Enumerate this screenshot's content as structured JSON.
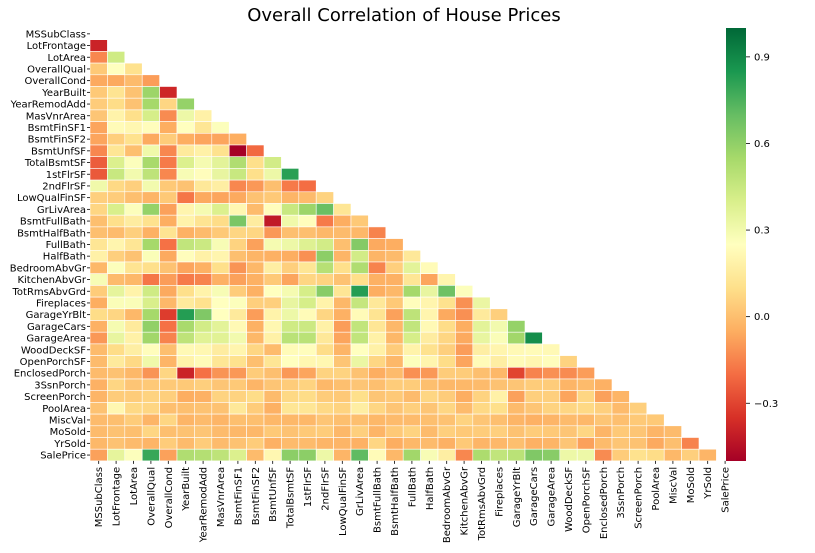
{
  "chart_data": {
    "type": "heatmap",
    "title": "Overall Correlation of House Prices",
    "layout": "lower-triangle",
    "grid": false,
    "colormap": "RdYlGn",
    "colorbar": {
      "position": "right",
      "vmin": -0.5,
      "vmax": 1.0,
      "ticks": [
        0.9,
        0.6,
        0.3,
        0.0,
        -0.3
      ],
      "tick_labels": [
        "0.9",
        "0.6",
        "0.3",
        "0.0",
        "−0.3"
      ]
    },
    "variables": [
      "MSSubClass",
      "LotFrontage",
      "LotArea",
      "OverallQual",
      "OverallCond",
      "YearBuilt",
      "YearRemodAdd",
      "MasVnrArea",
      "BsmtFinSF1",
      "BsmtFinSF2",
      "BsmtUnfSF",
      "TotalBsmtSF",
      "1stFlrSF",
      "2ndFlrSF",
      "LowQualFinSF",
      "GrLivArea",
      "BsmtFullBath",
      "BsmtHalfBath",
      "FullBath",
      "HalfBath",
      "BedroomAbvGr",
      "KitchenAbvGr",
      "TotRmsAbvGrd",
      "Fireplaces",
      "GarageYrBlt",
      "GarageCars",
      "GarageArea",
      "WoodDeckSF",
      "OpenPorchSF",
      "EnclosedPorch",
      "3SsnPorch",
      "ScreenPorch",
      "PoolArea",
      "MiscVal",
      "MoSold",
      "YrSold",
      "SalePrice"
    ],
    "matrix": [
      [],
      [
        -0.39
      ],
      [
        -0.14,
        0.43
      ],
      [
        0.03,
        0.25,
        0.11
      ],
      [
        -0.06,
        -0.06,
        -0.01,
        -0.09
      ],
      [
        0.03,
        0.12,
        0.01,
        0.57,
        -0.38
      ],
      [
        0.04,
        0.09,
        0.01,
        0.55,
        0.07,
        0.59
      ],
      [
        0.02,
        0.19,
        0.1,
        0.41,
        -0.13,
        0.32,
        0.18
      ],
      [
        -0.07,
        0.23,
        0.21,
        0.24,
        -0.05,
        0.25,
        0.13,
        0.26
      ],
      [
        -0.07,
        0.05,
        0.11,
        -0.06,
        0.04,
        -0.05,
        -0.07,
        -0.07,
        -0.05
      ],
      [
        -0.14,
        0.13,
        -0.0,
        0.31,
        -0.14,
        0.15,
        0.18,
        0.11,
        -0.5,
        -0.21
      ],
      [
        -0.24,
        0.39,
        0.26,
        0.54,
        -0.17,
        0.39,
        0.29,
        0.36,
        0.52,
        0.1,
        0.42
      ],
      [
        -0.25,
        0.45,
        0.3,
        0.48,
        -0.14,
        0.28,
        0.24,
        0.34,
        0.45,
        0.1,
        0.32,
        0.82
      ],
      [
        0.31,
        0.08,
        0.05,
        0.3,
        0.03,
        0.01,
        0.14,
        0.17,
        -0.14,
        -0.1,
        0.0,
        -0.17,
        -0.2
      ],
      [
        0.05,
        0.04,
        0.0,
        -0.03,
        0.03,
        -0.18,
        -0.06,
        -0.07,
        -0.06,
        0.01,
        0.03,
        -0.03,
        -0.01,
        0.06
      ],
      [
        0.07,
        0.4,
        0.26,
        0.59,
        -0.08,
        0.2,
        0.29,
        0.39,
        0.21,
        -0.01,
        0.24,
        0.45,
        0.57,
        0.69,
        0.13
      ],
      [
        0.0,
        0.1,
        0.16,
        0.11,
        -0.05,
        0.19,
        0.12,
        0.09,
        0.65,
        0.16,
        -0.42,
        0.31,
        0.24,
        -0.17,
        -0.05,
        0.03
      ],
      [
        -0.0,
        -0.01,
        0.05,
        -0.04,
        0.12,
        -0.04,
        -0.01,
        0.03,
        0.07,
        0.07,
        -0.1,
        0.0,
        0.0,
        -0.02,
        -0.01,
        -0.02,
        -0.15
      ],
      [
        0.13,
        0.2,
        0.13,
        0.55,
        -0.19,
        0.47,
        0.44,
        0.28,
        0.06,
        -0.08,
        0.29,
        0.32,
        0.38,
        0.42,
        0.0,
        0.63,
        -0.06,
        -0.05
      ],
      [
        0.18,
        0.05,
        0.01,
        0.27,
        -0.06,
        0.24,
        0.18,
        0.2,
        0.0,
        -0.03,
        -0.04,
        -0.05,
        -0.12,
        0.61,
        -0.03,
        0.42,
        -0.03,
        -0.01,
        0.14
      ],
      [
        -0.02,
        0.26,
        0.12,
        0.1,
        0.01,
        -0.07,
        -0.04,
        0.1,
        -0.11,
        -0.02,
        0.17,
        0.05,
        0.13,
        0.5,
        0.1,
        0.52,
        -0.15,
        0.05,
        0.36,
        0.23
      ],
      [
        0.28,
        -0.01,
        -0.02,
        -0.18,
        -0.09,
        -0.17,
        -0.15,
        -0.04,
        -0.08,
        -0.04,
        0.03,
        -0.07,
        0.07,
        0.06,
        0.01,
        0.1,
        -0.04,
        -0.04,
        0.13,
        -0.07,
        0.2
      ],
      [
        0.04,
        0.35,
        0.19,
        0.43,
        -0.06,
        0.1,
        0.19,
        0.28,
        0.04,
        -0.04,
        0.25,
        0.29,
        0.41,
        0.62,
        0.13,
        0.83,
        -0.05,
        -0.02,
        0.55,
        0.34,
        0.68,
        0.26
      ],
      [
        -0.05,
        0.27,
        0.27,
        0.4,
        -0.02,
        0.15,
        0.11,
        0.25,
        0.26,
        0.05,
        0.05,
        0.34,
        0.41,
        0.19,
        -0.02,
        0.46,
        0.14,
        0.03,
        0.24,
        0.2,
        0.11,
        -0.12,
        0.33
      ],
      [
        0.09,
        0.07,
        -0.02,
        0.55,
        -0.32,
        0.83,
        0.64,
        0.25,
        0.15,
        -0.09,
        0.19,
        0.32,
        0.23,
        0.07,
        -0.04,
        0.23,
        0.12,
        -0.08,
        0.48,
        0.2,
        -0.06,
        -0.12,
        0.15,
        0.05
      ],
      [
        -0.04,
        0.29,
        0.15,
        0.6,
        -0.19,
        0.54,
        0.42,
        0.36,
        0.22,
        -0.04,
        0.21,
        0.43,
        0.44,
        0.18,
        -0.09,
        0.47,
        0.13,
        -0.02,
        0.47,
        0.22,
        0.09,
        -0.05,
        0.36,
        0.3,
        0.59
      ],
      [
        -0.1,
        0.34,
        0.18,
        0.56,
        -0.15,
        0.48,
        0.37,
        0.37,
        0.3,
        -0.02,
        0.18,
        0.49,
        0.49,
        0.14,
        -0.07,
        0.47,
        0.18,
        -0.02,
        0.41,
        0.16,
        0.07,
        -0.06,
        0.34,
        0.27,
        0.56,
        0.88
      ],
      [
        -0.01,
        0.09,
        0.17,
        0.24,
        -0.0,
        0.22,
        0.21,
        0.16,
        0.2,
        0.07,
        -0.01,
        0.23,
        0.24,
        0.09,
        -0.03,
        0.25,
        0.18,
        0.04,
        0.19,
        0.11,
        0.05,
        -0.09,
        0.17,
        0.2,
        0.22,
        0.23,
        0.22
      ],
      [
        -0.01,
        0.15,
        0.08,
        0.31,
        -0.03,
        0.19,
        0.23,
        0.13,
        0.11,
        0.0,
        0.13,
        0.25,
        0.21,
        0.21,
        0.02,
        0.33,
        0.07,
        -0.02,
        0.26,
        0.2,
        0.09,
        -0.07,
        0.23,
        0.17,
        0.23,
        0.21,
        0.24,
        0.06
      ],
      [
        -0.01,
        0.01,
        -0.02,
        -0.11,
        0.07,
        -0.39,
        -0.19,
        -0.11,
        -0.1,
        0.04,
        -0.0,
        -0.1,
        -0.07,
        0.06,
        0.06,
        0.01,
        -0.05,
        -0.01,
        -0.12,
        -0.1,
        0.04,
        0.04,
        0.0,
        -0.02,
        -0.3,
        -0.15,
        -0.12,
        -0.13,
        -0.09
      ],
      [
        -0.04,
        0.07,
        0.02,
        0.03,
        0.03,
        0.03,
        0.05,
        0.02,
        0.03,
        -0.03,
        0.02,
        0.04,
        0.06,
        -0.02,
        -0.0,
        0.02,
        -0.0,
        0.04,
        0.04,
        -0.0,
        -0.02,
        -0.02,
        -0.01,
        0.01,
        0.02,
        0.04,
        0.04,
        -0.03,
        -0.01,
        -0.04
      ],
      [
        -0.03,
        0.04,
        0.04,
        0.06,
        0.05,
        -0.05,
        -0.04,
        0.06,
        0.06,
        0.09,
        -0.01,
        0.08,
        0.09,
        0.04,
        0.03,
        0.1,
        0.02,
        0.03,
        -0.01,
        0.07,
        0.04,
        -0.05,
        0.06,
        0.18,
        -0.08,
        0.05,
        0.05,
        -0.07,
        0.07,
        -0.08,
        -0.03
      ],
      [
        0.01,
        0.21,
        0.08,
        0.07,
        -0.0,
        0.0,
        0.01,
        0.01,
        0.14,
        0.04,
        -0.04,
        0.13,
        0.13,
        0.08,
        0.06,
        0.17,
        0.07,
        0.02,
        0.05,
        0.02,
        0.07,
        -0.01,
        0.08,
        0.1,
        -0.01,
        0.02,
        0.06,
        0.07,
        0.08,
        0.05,
        -0.01,
        0.05
      ],
      [
        -0.01,
        0.0,
        0.04,
        -0.03,
        0.07,
        -0.03,
        -0.01,
        -0.03,
        0.0,
        0.0,
        -0.02,
        -0.02,
        -0.02,
        0.02,
        -0.0,
        -0.0,
        -0.02,
        -0.01,
        -0.01,
        0.0,
        0.01,
        0.06,
        0.02,
        0.0,
        -0.03,
        -0.04,
        -0.03,
        -0.01,
        -0.02,
        0.02,
        0.0,
        0.03,
        0.03
      ],
      [
        -0.01,
        0.01,
        0.0,
        0.07,
        -0.0,
        0.01,
        0.02,
        -0.01,
        -0.02,
        -0.02,
        0.03,
        0.01,
        0.03,
        0.04,
        -0.02,
        0.05,
        -0.03,
        0.03,
        0.06,
        -0.01,
        0.05,
        0.03,
        0.04,
        0.05,
        0.01,
        0.04,
        0.03,
        0.02,
        0.07,
        -0.03,
        0.03,
        0.02,
        -0.03,
        -0.01
      ],
      [
        -0.02,
        0.01,
        -0.01,
        -0.03,
        0.04,
        -0.01,
        0.04,
        -0.01,
        0.01,
        0.04,
        -0.04,
        -0.01,
        -0.01,
        -0.03,
        -0.03,
        -0.04,
        0.07,
        -0.05,
        -0.02,
        -0.01,
        -0.04,
        0.03,
        -0.03,
        -0.02,
        -0.0,
        -0.04,
        -0.03,
        0.02,
        -0.08,
        -0.01,
        0.02,
        0.01,
        -0.06,
        0.0,
        -0.15
      ],
      [
        -0.08,
        0.35,
        0.26,
        0.79,
        -0.08,
        0.52,
        0.51,
        0.48,
        0.39,
        -0.01,
        0.21,
        0.61,
        0.61,
        0.32,
        -0.03,
        0.71,
        0.23,
        -0.02,
        0.56,
        0.28,
        0.17,
        -0.14,
        0.53,
        0.47,
        0.49,
        0.64,
        0.62,
        0.32,
        0.32,
        -0.13,
        0.04,
        0.11,
        0.09,
        -0.02,
        0.05,
        -0.03
      ]
    ]
  }
}
